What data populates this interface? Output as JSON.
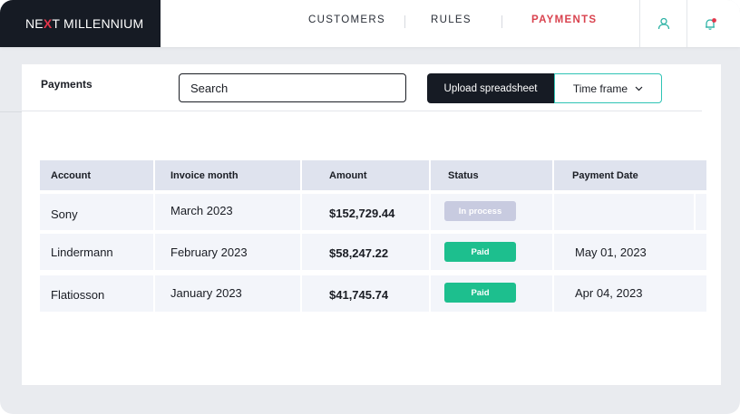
{
  "brand": {
    "part1": "NE",
    "x": "X",
    "part2": "T MILLENNIUM",
    "accent": "#e3354a"
  },
  "nav": {
    "items": [
      {
        "label": "CUSTOMERS",
        "active": false
      },
      {
        "label": "RULES",
        "active": false
      },
      {
        "label": "PAYMENTS",
        "active": true
      }
    ],
    "active_color": "#d9434f"
  },
  "header_icons": [
    "user-icon",
    "notification-bell-icon"
  ],
  "page": {
    "title": "Payments",
    "search_placeholder": "Search",
    "upload_label": "Upload spreadsheet",
    "timeframe_label": "Time frame"
  },
  "table": {
    "columns": [
      "Account",
      "Invoice month",
      "Amount",
      "Status",
      "Payment Date"
    ],
    "rows": [
      {
        "account": "Sony",
        "invoice_month": "March 2023",
        "amount": "$152,729.44",
        "status": "In process",
        "status_color": "#c8cbe0",
        "payment_date": ""
      },
      {
        "account": "Lindermann",
        "invoice_month": "February 2023",
        "amount": "$58,247.22",
        "status": "Paid",
        "status_color": "#1dbf8e",
        "payment_date": "May 01, 2023"
      },
      {
        "account": "Flatiosson",
        "invoice_month": "January 2023",
        "amount": "$41,745.74",
        "status": "Paid",
        "status_color": "#1dbf8e",
        "payment_date": "Apr 04, 2023"
      }
    ]
  }
}
